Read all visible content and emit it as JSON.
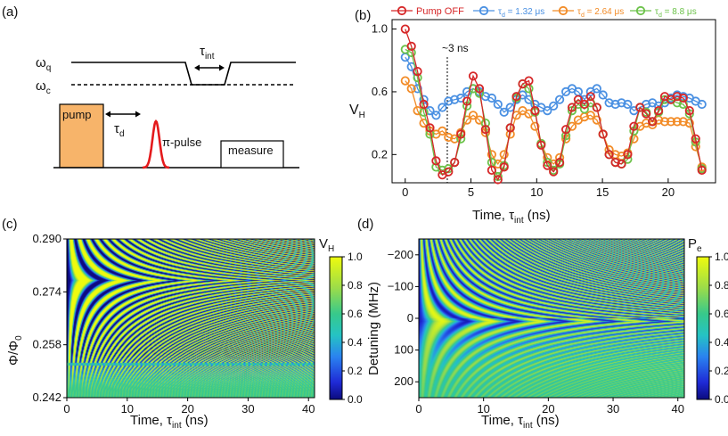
{
  "panel_labels": {
    "a": "(a)",
    "b": "(b)",
    "c": "(c)",
    "d": "(d)"
  },
  "schematic": {
    "omega_q": "ω",
    "omega_q_sub": "q",
    "omega_c": "ω",
    "omega_c_sub": "c",
    "tau_int": "τ",
    "tau_int_sub": "int",
    "tau_d": "τ",
    "tau_d_sub": "d",
    "pump": "pump",
    "pi_pulse": "π-pulse",
    "measure": "measure",
    "colors": {
      "pump": "#F7B46A",
      "pi_pulse": "#E41A1C"
    }
  },
  "chart_data": [
    {
      "id": "b",
      "type": "line",
      "xlabel": "Time, τ",
      "xlabel_sub": "int",
      "xlabel_unit": " (ns)",
      "ylabel": "V",
      "ylabel_sub": "H",
      "xlim": [
        -1,
        23.6
      ],
      "ylim": [
        0.02,
        1.06
      ],
      "xticks": [
        0,
        5,
        10,
        15,
        20
      ],
      "yticks": [
        0.2,
        0.6,
        1.0
      ],
      "ytick_labels": [
        "0.2",
        "0.6",
        "1.0"
      ],
      "annotation": {
        "text": "~3 ns",
        "x": 3.2
      },
      "x": [
        0,
        0.47,
        0.94,
        1.41,
        1.88,
        2.35,
        2.82,
        3.29,
        3.76,
        4.23,
        4.7,
        5.17,
        5.64,
        6.11,
        6.58,
        7.05,
        7.52,
        7.99,
        8.46,
        8.93,
        9.4,
        9.87,
        10.34,
        10.81,
        11.28,
        11.75,
        12.22,
        12.69,
        13.16,
        13.63,
        14.1,
        14.57,
        15.04,
        15.51,
        15.98,
        16.45,
        16.92,
        17.39,
        17.86,
        18.33,
        18.8,
        19.27,
        19.74,
        20.21,
        20.68,
        21.15,
        21.62,
        22.09,
        22.56
      ],
      "series": [
        {
          "name": "Pump OFF",
          "label_main": "Pump OFF",
          "label_sub": "",
          "label_suffix": "",
          "color": "#D62728",
          "values": [
            1.0,
            0.89,
            0.73,
            0.52,
            0.37,
            0.16,
            0.07,
            0.09,
            0.15,
            0.33,
            0.54,
            0.7,
            0.62,
            0.36,
            0.1,
            0.04,
            0.12,
            0.37,
            0.57,
            0.65,
            0.67,
            0.48,
            0.26,
            0.13,
            0.09,
            0.15,
            0.36,
            0.5,
            0.55,
            0.52,
            0.57,
            0.5,
            0.33,
            0.2,
            0.15,
            0.14,
            0.2,
            0.38,
            0.5,
            0.46,
            0.41,
            0.48,
            0.57,
            0.55,
            0.57,
            0.56,
            0.48,
            0.3,
            0.1
          ]
        },
        {
          "name": "τd = 1.32 μs",
          "label_main": "τ",
          "label_sub": "d",
          "label_suffix": " = 1.32 μs",
          "color": "#4A90E2",
          "values": [
            0.82,
            0.76,
            0.62,
            0.55,
            0.48,
            0.45,
            0.5,
            0.54,
            0.55,
            0.56,
            0.6,
            0.62,
            0.6,
            0.57,
            0.56,
            0.52,
            0.47,
            0.5,
            0.55,
            0.58,
            0.55,
            0.52,
            0.5,
            0.48,
            0.51,
            0.55,
            0.6,
            0.62,
            0.6,
            0.55,
            0.6,
            0.62,
            0.58,
            0.53,
            0.52,
            0.53,
            0.52,
            0.48,
            0.5,
            0.52,
            0.53,
            0.51,
            0.53,
            0.56,
            0.58,
            0.57,
            0.56,
            0.54,
            0.52
          ]
        },
        {
          "name": "τd = 2.64 μs",
          "label_main": "τ",
          "label_sub": "d",
          "label_suffix": " = 2.64 μs",
          "color": "#F28C28",
          "values": [
            0.67,
            0.62,
            0.48,
            0.4,
            0.35,
            0.33,
            0.35,
            0.31,
            0.3,
            0.34,
            0.42,
            0.45,
            0.42,
            0.34,
            0.2,
            0.14,
            0.2,
            0.33,
            0.45,
            0.48,
            0.46,
            0.38,
            0.27,
            0.18,
            0.14,
            0.18,
            0.3,
            0.38,
            0.42,
            0.44,
            0.45,
            0.42,
            0.33,
            0.23,
            0.2,
            0.19,
            0.21,
            0.3,
            0.38,
            0.4,
            0.39,
            0.42,
            0.41,
            0.41,
            0.41,
            0.41,
            0.4,
            0.25,
            0.12
          ]
        },
        {
          "name": "τd = 8.8 μs",
          "label_main": "τ",
          "label_sub": "d",
          "label_suffix": " = 8.8 μs",
          "color": "#6CC24A",
          "values": [
            0.87,
            0.85,
            0.69,
            0.47,
            0.33,
            0.12,
            0.1,
            0.11,
            0.15,
            0.3,
            0.51,
            0.62,
            0.59,
            0.4,
            0.15,
            0.06,
            0.13,
            0.37,
            0.56,
            0.65,
            0.62,
            0.47,
            0.27,
            0.15,
            0.1,
            0.14,
            0.32,
            0.48,
            0.52,
            0.49,
            0.53,
            0.5,
            0.33,
            0.2,
            0.15,
            0.14,
            0.17,
            0.35,
            0.5,
            0.47,
            0.41,
            0.47,
            0.55,
            0.55,
            0.53,
            0.52,
            0.46,
            0.28,
            0.11
          ]
        }
      ]
    },
    {
      "id": "c",
      "type": "heatmap",
      "xlabel": "Time, τ",
      "xlabel_sub": "int",
      "xlabel_unit": " (ns)",
      "ylabel": "Φ/Φ",
      "ylabel_sub": "0",
      "xlim": [
        0,
        41
      ],
      "ylim": [
        0.242,
        0.29
      ],
      "xticks": [
        0,
        10,
        20,
        30,
        40
      ],
      "yticks": [
        0.242,
        0.258,
        0.274,
        0.29
      ],
      "ytick_labels": [
        "0.242",
        "0.258",
        "0.274",
        "0.290"
      ],
      "colorbar": {
        "label": "V",
        "label_sub": "H",
        "range": [
          0,
          1
        ],
        "ticks": [
          "0.0",
          "0.2",
          "0.4",
          "0.6",
          "0.8",
          "1.0"
        ]
      },
      "pattern": "chevron fringes converging toward sweet spot near 0.262; noisy band near 0.252"
    },
    {
      "id": "d",
      "type": "heatmap",
      "xlabel": "Time, τ",
      "xlabel_sub": "int",
      "xlabel_unit": " (ns)",
      "ylabel": "Detuning (MHz)",
      "ylabel_sub": "",
      "xlim": [
        0,
        41
      ],
      "ylim": [
        250,
        -250
      ],
      "xticks": [
        0,
        10,
        20,
        30,
        40
      ],
      "yticks": [
        -200,
        -100,
        0,
        100,
        200
      ],
      "ytick_labels": [
        "−200",
        "−100",
        "0",
        "100",
        "200"
      ],
      "colorbar": {
        "label": "P",
        "label_sub": "e",
        "range": [
          0,
          1
        ],
        "ticks": [
          "0.0",
          "0.2",
          "0.4",
          "0.6",
          "0.8",
          "1.0"
        ]
      },
      "pattern": "chevron fringes centred near zero detuning"
    }
  ]
}
